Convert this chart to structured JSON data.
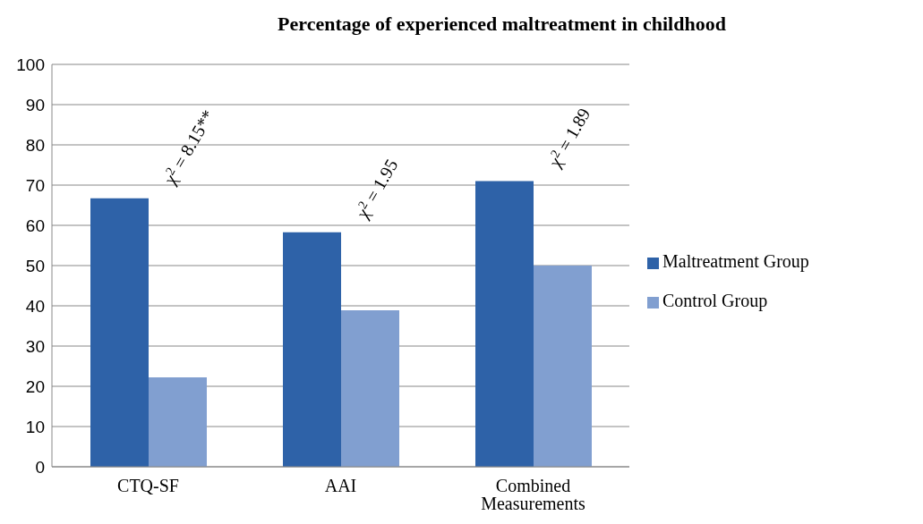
{
  "chart_data": {
    "type": "bar",
    "title": "Percentage of experienced maltreatment in childhood",
    "categories": [
      "CTQ-SF",
      "AAI",
      "Combined Measurements"
    ],
    "series": [
      {
        "name": "Maltreatment Group",
        "color": "#2e62a8",
        "values": [
          66.7,
          58.3,
          71
        ]
      },
      {
        "name": "Control Group",
        "color": "#819fd0",
        "values": [
          22.2,
          38.9,
          50
        ]
      }
    ],
    "annotations": [
      "χ$^{2}$ = 8.15**",
      "χ$^{2}$ = 1.95",
      "χ$^{2}$ = 1.89"
    ],
    "ylim": [
      0,
      100
    ],
    "yticks": [
      0,
      10,
      20,
      30,
      40,
      50,
      60,
      70,
      80,
      90,
      100
    ],
    "grid": "y",
    "legend": "right"
  }
}
